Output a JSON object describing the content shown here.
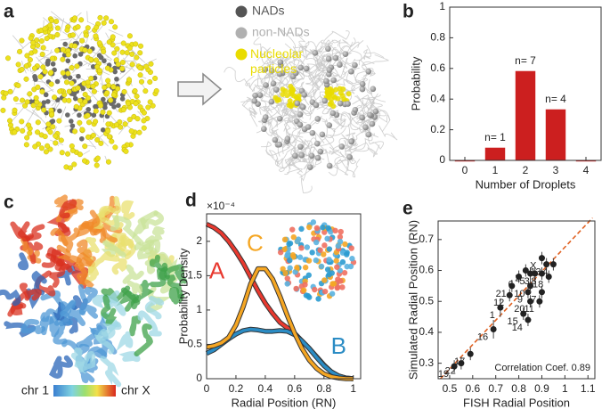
{
  "figure": {
    "panel_labels": [
      "a",
      "b",
      "c",
      "d",
      "e"
    ],
    "legend_a": [
      {
        "text": "NADs",
        "color": "#555555"
      },
      {
        "text": "non-NADs",
        "color": "#b0b0b0"
      },
      {
        "text": "Nucleolar particles",
        "color": "#e9dc00"
      }
    ],
    "colorbar": [
      "chr 1",
      "chr X"
    ]
  },
  "chart_data": [
    {
      "type": "bar",
      "categories": [
        "0",
        "1",
        "2",
        "3",
        "4"
      ],
      "values": [
        0,
        0.083,
        0.583,
        0.333,
        0
      ],
      "color": "#cc1f1f",
      "ylim": [
        0,
        1
      ],
      "yticks": [
        0,
        0.2,
        0.4,
        0.6,
        0.8,
        1
      ],
      "xlabel": "Number of Droplets",
      "ylabel": "Probability",
      "annotations": [
        {
          "text": "n= 1",
          "category": "1"
        },
        {
          "text": "n= 7",
          "category": "2"
        },
        {
          "text": "n= 4",
          "category": "3"
        }
      ]
    },
    {
      "type": "line",
      "x": [
        0,
        0.05,
        0.1,
        0.15,
        0.2,
        0.25,
        0.3,
        0.35,
        0.4,
        0.45,
        0.5,
        0.55,
        0.6,
        0.65,
        0.7,
        0.75,
        0.8,
        0.85,
        0.9,
        0.95,
        1
      ],
      "series": [
        {
          "name": "A",
          "color": "#e8392f",
          "values": [
            2.25,
            2.2,
            2.12,
            2.0,
            1.85,
            1.68,
            1.48,
            1.28,
            1.1,
            0.95,
            0.82,
            0.74,
            0.66,
            0.55,
            0.44,
            0.32,
            0.2,
            0.1,
            0.04,
            0.01,
            0
          ]
        },
        {
          "name": "B",
          "color": "#2b8cc4",
          "values": [
            0.37,
            0.42,
            0.5,
            0.58,
            0.65,
            0.7,
            0.72,
            0.71,
            0.69,
            0.69,
            0.7,
            0.69,
            0.64,
            0.55,
            0.44,
            0.31,
            0.19,
            0.1,
            0.04,
            0.01,
            0
          ]
        },
        {
          "name": "C",
          "color": "#f5a623",
          "values": [
            0.46,
            0.48,
            0.52,
            0.6,
            0.78,
            1.05,
            1.38,
            1.6,
            1.6,
            1.45,
            1.2,
            0.92,
            0.66,
            0.44,
            0.27,
            0.15,
            0.07,
            0.03,
            0.01,
            0,
            0
          ]
        }
      ],
      "xlim": [
        0,
        1.05
      ],
      "xticks": [
        0,
        0.2,
        0.4,
        0.6,
        0.8,
        1
      ],
      "ylim": [
        0,
        2.4
      ],
      "yticks": [
        0,
        0.5,
        1,
        1.5,
        2
      ],
      "y_multiplier": "×10⁻⁴",
      "xlabel": "Radial Position (RN)",
      "ylabel": "Probability Density"
    },
    {
      "type": "scatter",
      "x": [
        0.52,
        0.55,
        0.59,
        0.69,
        0.72,
        0.76,
        0.77,
        0.82,
        0.84,
        0.85,
        0.84,
        0.85,
        0.8,
        0.83,
        0.85,
        0.87,
        0.89,
        0.9,
        0.9,
        0.93,
        0.92,
        0.95,
        0.9
      ],
      "y": [
        0.29,
        0.3,
        0.33,
        0.41,
        0.48,
        0.52,
        0.55,
        0.46,
        0.44,
        0.5,
        0.53,
        0.55,
        0.58,
        0.6,
        0.59,
        0.59,
        0.5,
        0.53,
        0.59,
        0.58,
        0.62,
        0.62,
        0.64
      ],
      "yerr": [
        0.02,
        0.02,
        0.02,
        0.03,
        0.03,
        0.02,
        0.02,
        0.02,
        0.02,
        0.02,
        0.02,
        0.02,
        0.02,
        0.02,
        0.02,
        0.02,
        0.02,
        0.02,
        0.02,
        0.02,
        0.02,
        0.02,
        0.02
      ],
      "point_labels": [
        "19",
        "22",
        "17",
        "16",
        "1",
        "12",
        "21",
        "15",
        "14",
        "20",
        "9",
        "10",
        "6",
        "2",
        "5",
        "3",
        "11",
        "7",
        "8",
        "18",
        "13",
        "4",
        "X"
      ],
      "color": "#222222",
      "fit_line": {
        "x": [
          0.46,
          1.12
        ],
        "y": [
          0.25,
          0.77
        ],
        "color": "#e06020"
      },
      "xlim": [
        0.45,
        1.13
      ],
      "xticks": [
        0.5,
        0.6,
        0.7,
        0.8,
        0.9,
        1,
        1.1
      ],
      "ylim": [
        0.25,
        0.76
      ],
      "yticks": [
        0.3,
        0.4,
        0.5,
        0.6,
        0.7
      ],
      "xlabel": "FISH Radial Position",
      "ylabel": "Simulated Radial Position (RN)",
      "annotation": "Correlation Coef. 0.89"
    }
  ]
}
